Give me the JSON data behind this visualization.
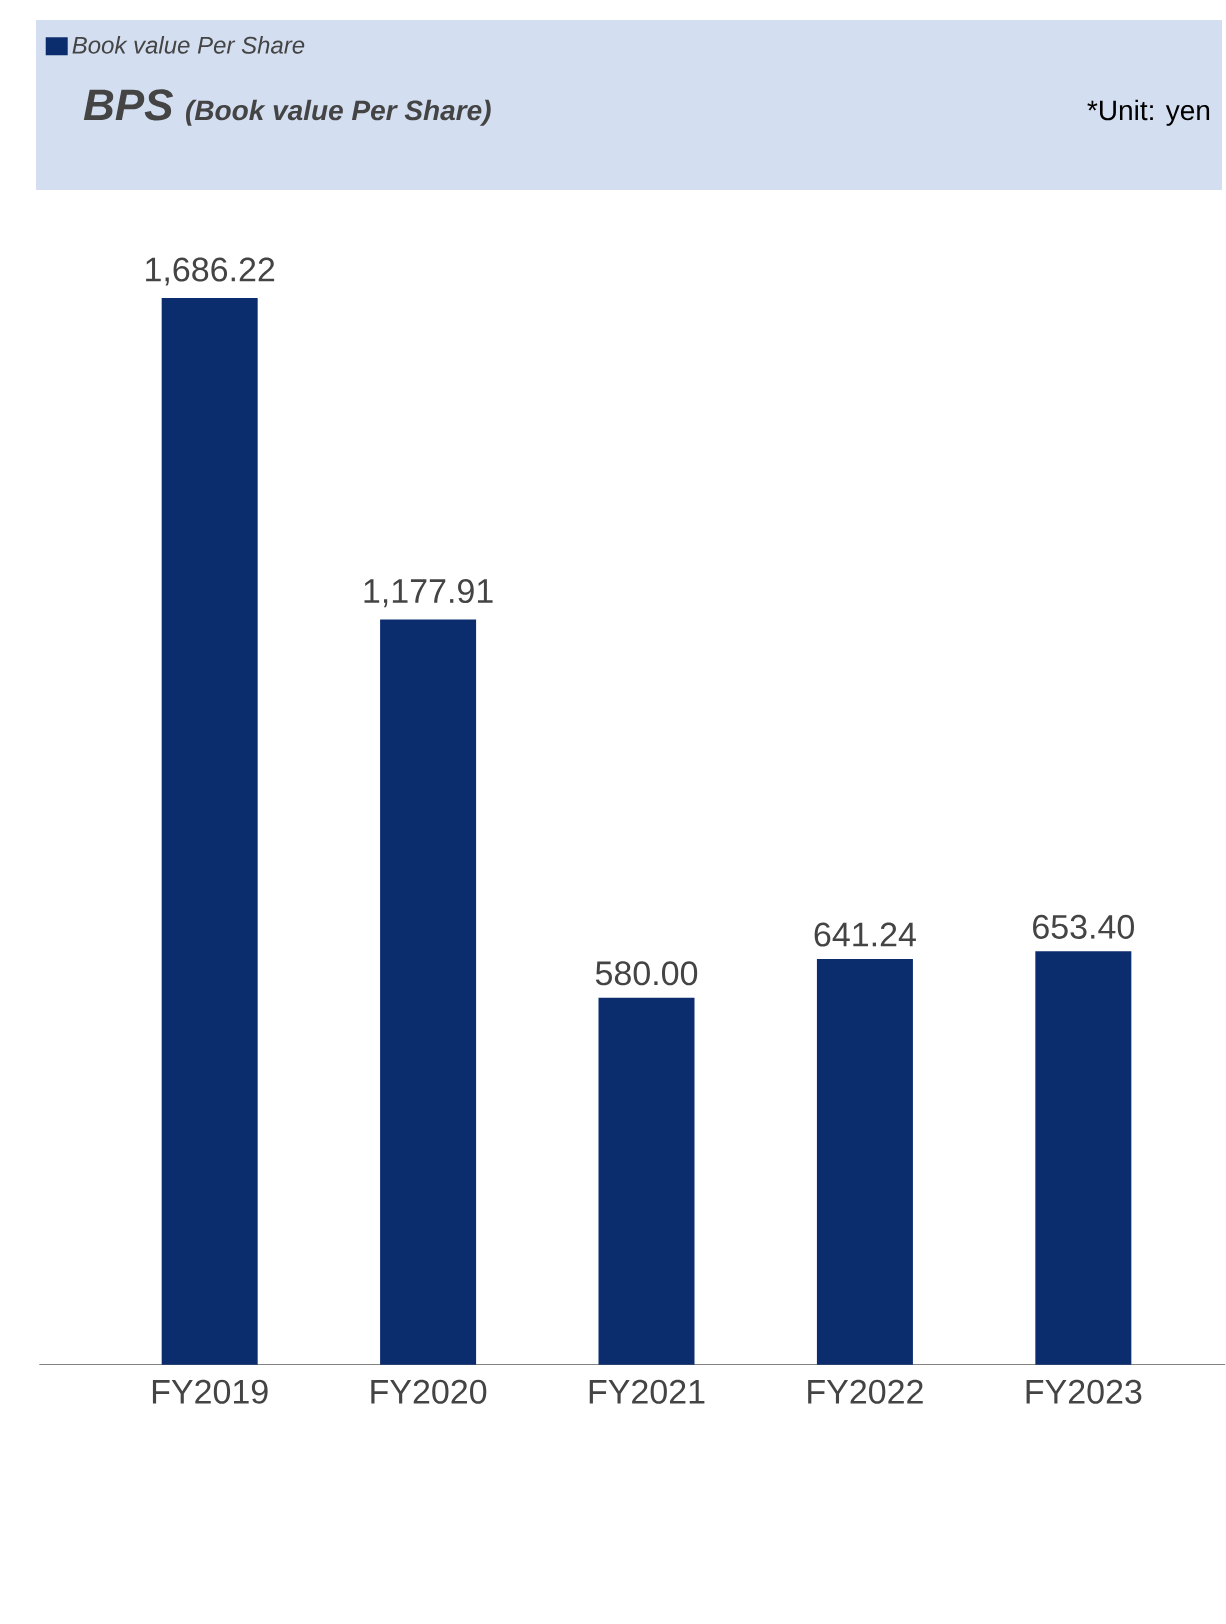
{
  "chart_data": {
    "type": "bar",
    "title": "BPS",
    "subtitle": "(Book value Per Share)",
    "annotations": [
      "*Unit: yen"
    ],
    "categories": [
      "FY2019",
      "FY2020",
      "FY2021",
      "FY2022",
      "FY2023"
    ],
    "series": [
      {
        "name": "Book value Per Share",
        "color": "#0b2d6e",
        "values": [
          1686.22,
          1177.91,
          580.0,
          641.24,
          653.4
        ],
        "value_labels": [
          "1,686.22",
          "1,177.91",
          "580.00",
          "641.24",
          "653.40"
        ]
      }
    ],
    "data_labels": true,
    "legend": "top left"
  }
}
